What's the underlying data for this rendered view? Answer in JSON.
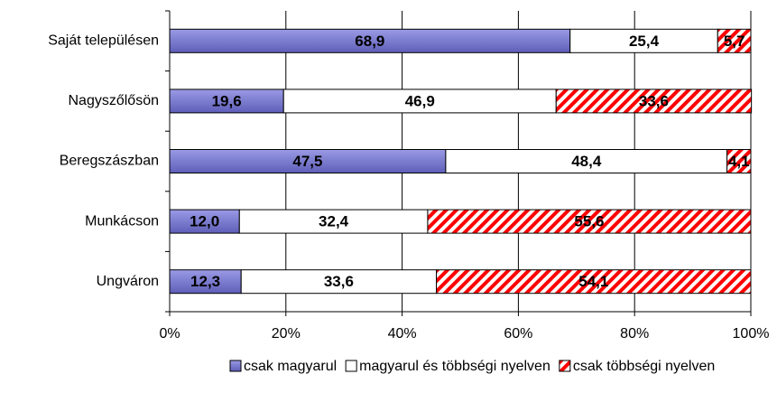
{
  "chart_data": {
    "type": "stacked-barh",
    "categories": [
      "Saját településen",
      "Nagyszőlősön",
      "Beregszászban",
      "Munkácson",
      "Ungváron"
    ],
    "series": [
      {
        "name": "csak magyarul",
        "color": "#7878d0",
        "values": [
          68.9,
          19.6,
          47.5,
          12.0,
          12.3
        ],
        "value_labels": [
          "68,9",
          "19,6",
          "47,5",
          "12,0",
          "12,3"
        ]
      },
      {
        "name": "magyarul és többségi nyelven",
        "color": "#ffffff",
        "values": [
          25.4,
          46.9,
          48.4,
          32.4,
          33.6
        ],
        "value_labels": [
          "25,4",
          "46,9",
          "48,4",
          "32,4",
          "33,6"
        ]
      },
      {
        "name": "csak többségi nyelven",
        "color": "#ff0000",
        "pattern": "hatch",
        "values": [
          5.7,
          33.6,
          4.1,
          55.6,
          54.1
        ],
        "value_labels": [
          "5,7",
          "33,6",
          "4,1",
          "55,6",
          "54,1"
        ]
      }
    ],
    "xlim": [
      0,
      100
    ],
    "xticks": [
      {
        "value": 0,
        "label": "0%"
      },
      {
        "value": 20,
        "label": "20%"
      },
      {
        "value": 40,
        "label": "40%"
      },
      {
        "value": 60,
        "label": "60%"
      },
      {
        "value": 80,
        "label": "80%"
      },
      {
        "value": 100,
        "label": "100%"
      }
    ],
    "grid": true,
    "legend": "bottom"
  }
}
